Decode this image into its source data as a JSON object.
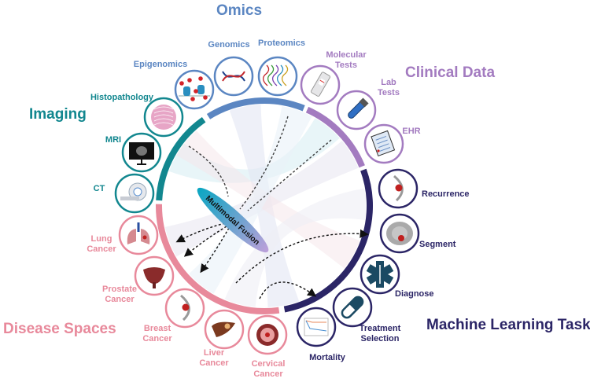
{
  "colors": {
    "omics": "#5b86c2",
    "clinical": "#a37bc0",
    "ml": "#2b2566",
    "disease": "#e8899b",
    "imaging": "#12878f",
    "fusion_start": "#0aa6c2",
    "fusion_end": "#bda0da"
  },
  "groups": {
    "omics": {
      "title": "Omics"
    },
    "clinical": {
      "title": "Clinical Data"
    },
    "imaging": {
      "title": "Imaging"
    },
    "disease": {
      "title": "Disease Spaces"
    },
    "ml": {
      "title": "Machine Learning Tasks"
    }
  },
  "center_label": "Multimodal Fusion",
  "nodes": [
    {
      "group": "omics",
      "icon": "nucleosome-icon",
      "label": [
        "Epigenomics"
      ]
    },
    {
      "group": "omics",
      "icon": "dna-icon",
      "label": [
        "Genomics"
      ]
    },
    {
      "group": "omics",
      "icon": "protein-strands-icon",
      "label": [
        "Proteomics"
      ]
    },
    {
      "group": "clinical",
      "icon": "test-strip-icon",
      "label": [
        "Molecular",
        "Tests"
      ]
    },
    {
      "group": "clinical",
      "icon": "test-tube-icon",
      "label": [
        "Lab",
        "Tests"
      ]
    },
    {
      "group": "clinical",
      "icon": "clipboard-icon",
      "label": [
        "EHR"
      ]
    },
    {
      "group": "ml",
      "icon": "breast-tumor-icon",
      "label": [
        "Recurrence"
      ]
    },
    {
      "group": "ml",
      "icon": "brain-scan-icon",
      "label": [
        "Segment"
      ]
    },
    {
      "group": "ml",
      "icon": "medical-star-icon",
      "label": [
        "Diagnose"
      ]
    },
    {
      "group": "ml",
      "icon": "pill-capsule-icon",
      "label": [
        "Treatment",
        "Selection"
      ]
    },
    {
      "group": "ml",
      "icon": "survival-curve-icon",
      "label": [
        "Mortality"
      ]
    },
    {
      "group": "disease",
      "icon": "cervix-icon",
      "label": [
        "Cervical",
        "Cancer"
      ]
    },
    {
      "group": "disease",
      "icon": "liver-icon",
      "label": [
        "Liver",
        "Cancer"
      ]
    },
    {
      "group": "disease",
      "icon": "breast-tumor-icon",
      "label": [
        "Breast",
        "Cancer"
      ]
    },
    {
      "group": "disease",
      "icon": "prostate-icon",
      "label": [
        "Prostate",
        "Cancer"
      ]
    },
    {
      "group": "disease",
      "icon": "lungs-icon",
      "label": [
        "Lung",
        "Cancer"
      ]
    },
    {
      "group": "imaging",
      "icon": "ct-scanner-icon",
      "label": [
        "CT"
      ]
    },
    {
      "group": "imaging",
      "icon": "mri-monitor-icon",
      "label": [
        "MRI"
      ]
    },
    {
      "group": "imaging",
      "icon": "tissue-slide-icon",
      "label": [
        "Histopathology"
      ]
    }
  ]
}
